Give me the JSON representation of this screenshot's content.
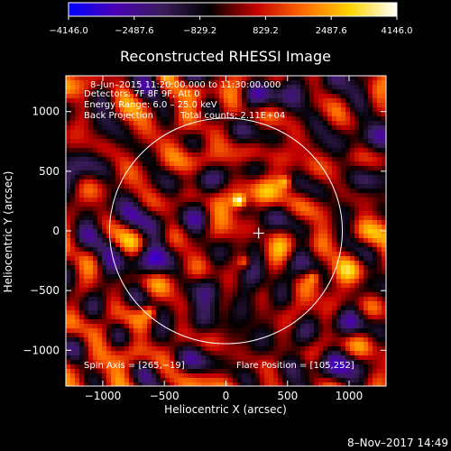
{
  "chart_data": {
    "type": "heatmap",
    "title": "Reconstructed RHESSI Image",
    "xlabel": "Heliocentric X (arcsec)",
    "ylabel": "Heliocentric Y (arcsec)",
    "xlim": [
      -1300,
      1300
    ],
    "ylim": [
      -1300,
      1300
    ],
    "xticks": [
      -1000,
      -500,
      0,
      500,
      1000
    ],
    "yticks": [
      -1000,
      -500,
      0,
      500,
      1000
    ],
    "x_tick_labels": [
      "−1000",
      "−500",
      "0",
      "500",
      "1000"
    ],
    "y_tick_labels": [
      "−1000",
      "−500",
      "0",
      "500",
      "1000"
    ],
    "colorbar": {
      "range": [
        -4146.0,
        4146.0
      ],
      "tick_values": [
        -4146.0,
        -2487.6,
        -829.2,
        829.2,
        2487.6,
        4146.0
      ],
      "tick_labels": [
        "−4146.0",
        "−2487.6",
        "−829.2",
        "829.2",
        "2487.6",
        "4146.0"
      ],
      "colors": [
        "#0000ff",
        "#4b00b4",
        "#3a1d5a",
        "#000000",
        "#c40000",
        "#ff6a00",
        "#ffd400",
        "#ffffff"
      ]
    },
    "info_lines": [
      "8–Jun–2015 11:20:00.000 to 11:30:00.000",
      "Detectors: 7F 8F 9F, Att 0",
      "Energy Range: 6.0 – 25.0 keV"
    ],
    "method_label": "Back Projection",
    "total_counts_label": "Total counts: 2.11E+04",
    "spin_axis_label": "Spin Axis = [265,−19]",
    "flare_position_label": "Flare Position = [105,252]",
    "solar_disk": {
      "center": [
        0,
        0
      ],
      "radius": 945
    },
    "spin_axis": [
      265,
      -19
    ],
    "flare_position": [
      105,
      252
    ],
    "bright_spots": [
      {
        "x": 105,
        "y": 252,
        "value": 4146
      },
      {
        "x": 480,
        "y": 410,
        "value": 2300
      },
      {
        "x": -620,
        "y": -680,
        "value": 2000
      },
      {
        "x": 150,
        "y": -260,
        "value": 2100
      },
      {
        "x": 710,
        "y": -390,
        "value": 1900
      }
    ],
    "timestamp": "8–Nov–2017 14:49"
  }
}
